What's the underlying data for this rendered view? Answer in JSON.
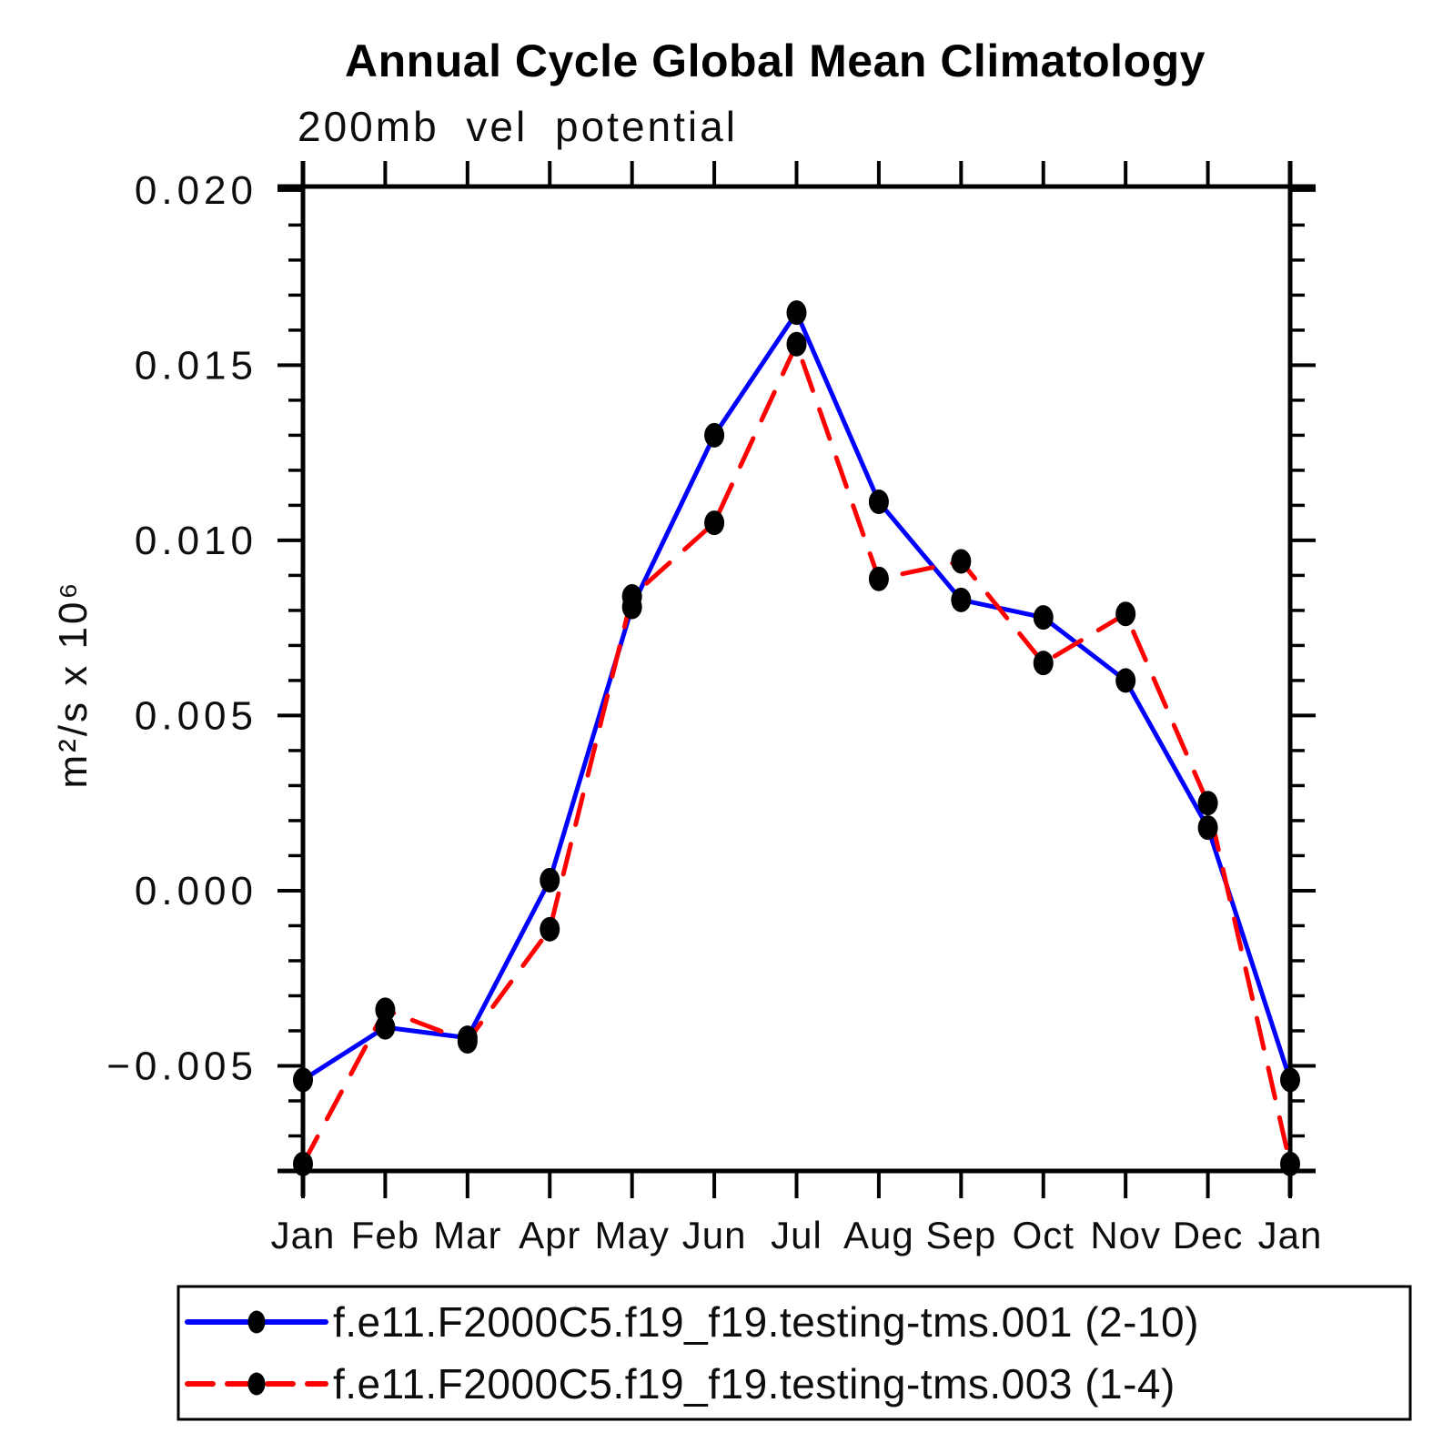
{
  "window": {
    "background_color": "#ffffff"
  },
  "chart_data": {
    "type": "line",
    "title": "Annual Cycle Global Mean Climatology",
    "subtitle": "200mb vel potential",
    "ylabel": "m²/s x 10⁶",
    "xlabel": "",
    "categories": [
      "Jan",
      "Feb",
      "Mar",
      "Apr",
      "May",
      "Jun",
      "Jul",
      "Aug",
      "Sep",
      "Oct",
      "Nov",
      "Dec",
      "Jan"
    ],
    "ylim": [
      -0.008,
      0.0201
    ],
    "yticks": [
      {
        "value": 0.02,
        "label": "0.020"
      },
      {
        "value": 0.015,
        "label": "0.015"
      },
      {
        "value": 0.01,
        "label": "0.010"
      },
      {
        "value": 0.005,
        "label": "0.005"
      },
      {
        "value": 0.0,
        "label": "0.000"
      },
      {
        "value": -0.005,
        "label": "−0.005"
      }
    ],
    "minor_ytick_step": 0.001,
    "grid": false,
    "legend_position": "bottom",
    "axis_color": "#000000",
    "marker_shape": "filled-circle",
    "series": [
      {
        "name": "f.e11.F2000C5.f19_f19.testing-tms.001 (2-10)",
        "color": "#0000ff",
        "line_style": "solid",
        "marker_color": "#000000",
        "values": [
          -0.0054,
          -0.0039,
          -0.0042,
          0.0003,
          0.0081,
          0.013,
          0.0165,
          0.0111,
          0.0083,
          0.0078,
          0.006,
          0.0018,
          -0.0054
        ]
      },
      {
        "name": "f.e11.F2000C5.f19_f19.testing-tms.003 (1-4)",
        "color": "#ff0000",
        "line_style": "dashed",
        "marker_color": "#000000",
        "values": [
          -0.0078,
          -0.0034,
          -0.0043,
          -0.0011,
          0.0084,
          0.0105,
          0.0156,
          0.0089,
          0.0094,
          0.0065,
          0.0079,
          0.0025,
          -0.0078
        ]
      }
    ]
  }
}
